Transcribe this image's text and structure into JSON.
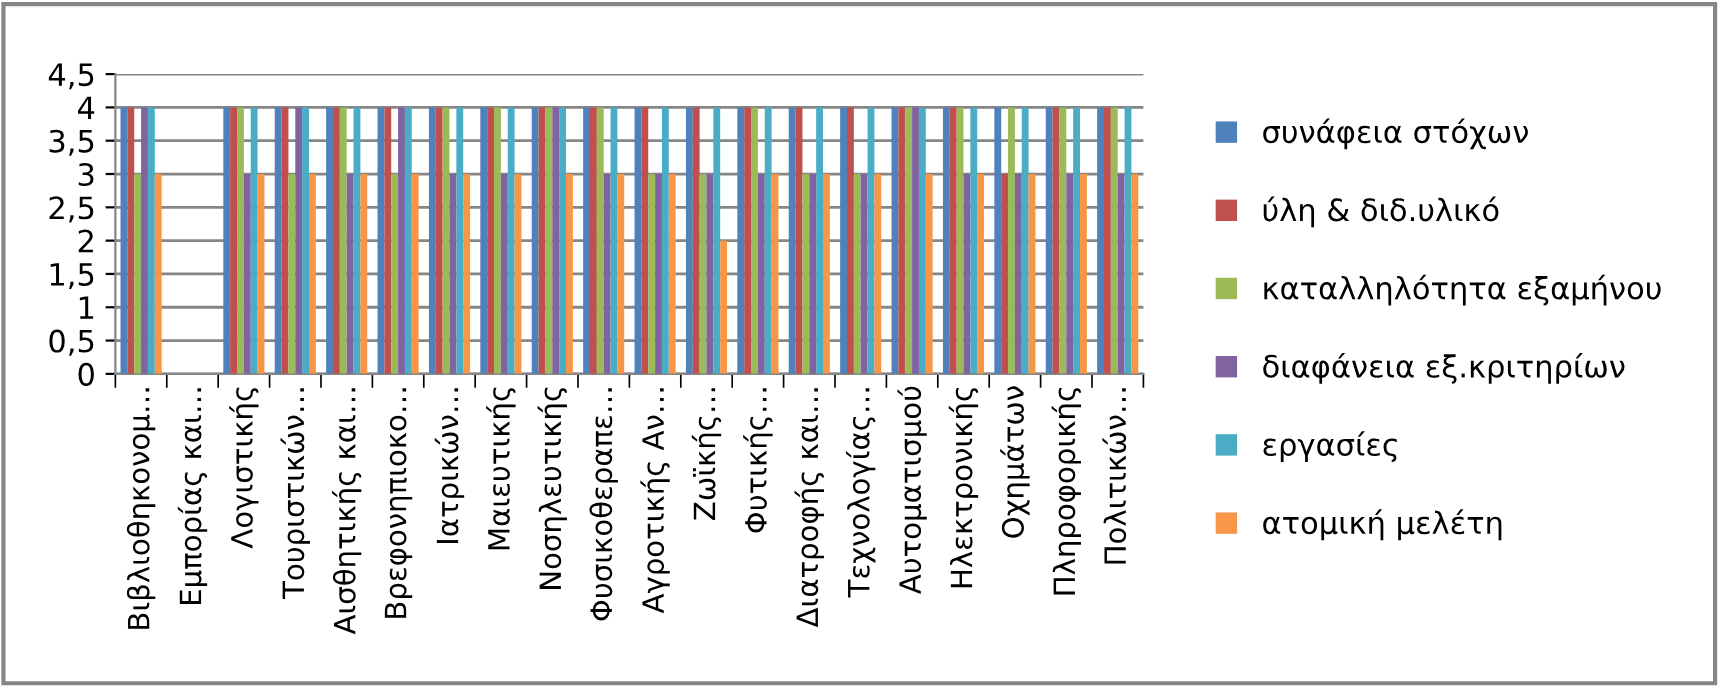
{
  "chart_data": {
    "type": "bar",
    "categories": [
      "Βιβλιοθηκονομ…",
      "Εμπορίας και…",
      "Λογιστικής",
      "Τουριστικών…",
      "Αισθητικής και…",
      "Βρεφονηπιοκο…",
      "Ιατρικών…",
      "Μαιευτικής",
      "Νοσηλευτικής",
      "Φυσικοθεραπε…",
      "Αγροτικής Αν…",
      "Ζωϊκής…",
      "Φυτικής…",
      "Διατροφής και…",
      "Τεχνολογίας…",
      "Αυτοματισμού",
      "Ηλεκτρονικής",
      "Οχημάτων",
      "Πληροφορικής",
      "Πολιτικών…"
    ],
    "series": [
      {
        "name": "συνάφεια στόχων",
        "color": "#4f81bd",
        "values": [
          4,
          null,
          4,
          4,
          4,
          4,
          4,
          4,
          4,
          4,
          4,
          4,
          4,
          4,
          4,
          4,
          4,
          4,
          4,
          4
        ]
      },
      {
        "name": "ύλη & διδ.υλικό",
        "color": "#c0504d",
        "values": [
          4,
          null,
          4,
          4,
          4,
          4,
          4,
          4,
          4,
          4,
          4,
          4,
          4,
          4,
          4,
          4,
          4,
          3,
          4,
          4
        ]
      },
      {
        "name": "καταλληλότητα εξαμήνου",
        "color": "#9bbb59",
        "values": [
          3,
          null,
          4,
          3,
          4,
          3,
          4,
          4,
          4,
          4,
          3,
          3,
          4,
          3,
          3,
          4,
          4,
          4,
          4,
          4
        ]
      },
      {
        "name": "διαφάνεια εξ.κριτηρίων",
        "color": "#8064a2",
        "values": [
          4,
          null,
          3,
          4,
          3,
          4,
          3,
          3,
          4,
          3,
          3,
          3,
          3,
          3,
          3,
          4,
          3,
          3,
          3,
          3
        ]
      },
      {
        "name": "εργασίες",
        "color": "#4bacc6",
        "values": [
          4,
          null,
          4,
          4,
          4,
          4,
          4,
          4,
          4,
          4,
          4,
          4,
          4,
          4,
          4,
          4,
          4,
          4,
          4,
          4
        ]
      },
      {
        "name": "ατομική μελέτη",
        "color": "#f79646",
        "values": [
          3,
          null,
          3,
          3,
          3,
          3,
          3,
          3,
          3,
          3,
          3,
          2,
          3,
          3,
          3,
          3,
          3,
          3,
          3,
          3
        ]
      }
    ],
    "ylim": [
      0,
      4.5
    ],
    "yticks": [
      {
        "value": 0,
        "label": "0"
      },
      {
        "value": 0.5,
        "label": "0,5"
      },
      {
        "value": 1,
        "label": "1"
      },
      {
        "value": 1.5,
        "label": "1,5"
      },
      {
        "value": 2,
        "label": "2"
      },
      {
        "value": 2.5,
        "label": "2,5"
      },
      {
        "value": 3,
        "label": "3"
      },
      {
        "value": 3.5,
        "label": "3,5"
      },
      {
        "value": 4,
        "label": "4"
      },
      {
        "value": 4.5,
        "label": "4,5"
      }
    ],
    "grid": "y",
    "legend": "right"
  }
}
